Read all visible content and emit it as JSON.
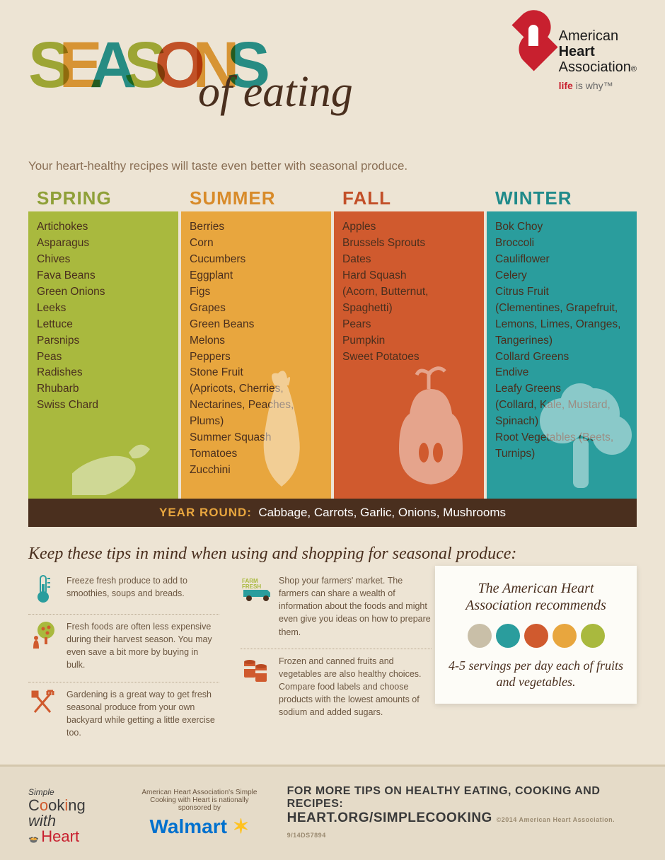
{
  "title": {
    "word": "SEASONS",
    "letter_colors": [
      "#a9b93e",
      "#e8a63e",
      "#2a9d9d",
      "#a9b93e",
      "#d05a2e",
      "#e8a63e",
      "#2a9d9d"
    ],
    "subtitle_script": "of eating",
    "tagline": "Your heart-healthy recipes will taste even better with seasonal produce."
  },
  "org": {
    "l1": "American",
    "l2": "Heart",
    "l3": "Association",
    "tag_life": "life",
    "tag_rest": " is why™"
  },
  "seasons": [
    {
      "name": "SPRING",
      "head_color": "#8fa038",
      "bg": "#a9b93e",
      "items": [
        "Artichokes",
        "Asparagus",
        "Chives",
        "Fava Beans",
        "Green Onions",
        "Leeks",
        "Lettuce",
        "Parsnips",
        "Peas",
        "Radishes",
        "Rhubarb",
        "Swiss Chard"
      ]
    },
    {
      "name": "SUMMER",
      "head_color": "#d88b2a",
      "bg": "#e8a63e",
      "items": [
        "Berries",
        "Corn",
        "Cucumbers",
        "Eggplant",
        "Figs",
        "Grapes",
        "Green Beans",
        "Melons",
        "Peppers",
        "Stone Fruit",
        "(Apricots, Cherries,",
        "Nectarines, Peaches,",
        "Plums)",
        "Summer Squash",
        "Tomatoes",
        "Zucchini"
      ]
    },
    {
      "name": "FALL",
      "head_color": "#c24f28",
      "bg": "#d05a2e",
      "items": [
        "Apples",
        "Brussels Sprouts",
        "Dates",
        "Hard Squash",
        "(Acorn, Butternut,",
        "Spaghetti)",
        "Pears",
        "Pumpkin",
        "Sweet Potatoes"
      ]
    },
    {
      "name": "WINTER",
      "head_color": "#1f8a8a",
      "bg": "#2a9d9d",
      "items": [
        "Bok Choy",
        "Broccoli",
        "Cauliflower",
        "Celery",
        "Citrus Fruit",
        "(Clementines, Grapefruit,",
        "Lemons, Limes, Oranges,",
        "Tangerines)",
        "Collard Greens",
        "Endive",
        "Leafy Greens",
        "(Collard, Kale, Mustard,",
        "Spinach)",
        "Root Vegetables (Beets,",
        "Turnips)"
      ]
    }
  ],
  "year_round": {
    "label": "YEAR ROUND:",
    "items": "Cabbage, Carrots, Garlic, Onions, Mushrooms"
  },
  "tips": {
    "heading": "Keep these tips in mind when using and shopping for seasonal produce:",
    "left": [
      {
        "icon": "thermometer",
        "color": "#2a9d9d",
        "text": "Freeze fresh produce to add to smoothies, soups and breads."
      },
      {
        "icon": "tree",
        "color": "#d05a2e",
        "text": "Fresh foods are often less expensive during their harvest season. You may even save a bit more by buying in bulk."
      },
      {
        "icon": "tools",
        "color": "#d05a2e",
        "text": "Gardening is a great way to get fresh seasonal produce from your own backyard while getting a little exercise too."
      }
    ],
    "right": [
      {
        "icon": "truck",
        "color": "#2a9d9d",
        "text": "Shop your farmers' market. The farmers can share a wealth of information about the foods and might even give you ideas on how to prepare them."
      },
      {
        "icon": "cans",
        "color": "#d05a2e",
        "text": "Frozen and canned fruits and vegetables are also healthy choices. Compare food labels and choose products with the lowest amounts of sodium and added sugars."
      }
    ]
  },
  "reco": {
    "title": "The American Heart Association recommends",
    "icon_colors": [
      "#c9bfa8",
      "#2a9d9d",
      "#d05a2e",
      "#e8a63e",
      "#a9b93e"
    ],
    "text": "4-5 servings per day each of fruits and vegetables."
  },
  "footer": {
    "cooking_simple": "Simple",
    "cooking_main": "Cooking with",
    "cooking_heart": "Heart",
    "sponsor_text": "American Heart Association's Simple Cooking with Heart is nationally sponsored by",
    "walmart": "Walmart",
    "more1": "FOR MORE TIPS ON HEALTHY EATING, COOKING AND RECIPES:",
    "more2": "HEART.ORG/SIMPLECOOKING",
    "copy": "©2014 American Heart Association. 9/14DS7894"
  }
}
